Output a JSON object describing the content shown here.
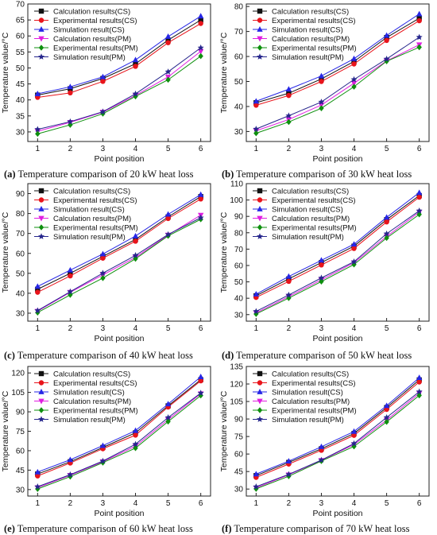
{
  "figure": {
    "legend_labels": [
      "Calculation results(CS)",
      "Experimental results(CS)",
      "Simulation result(CS)",
      "Calculation results(PM)",
      "Experimental results(PM)",
      "Simulation result(PM)"
    ],
    "series_style": [
      {
        "color": "#111111",
        "marker": "square"
      },
      {
        "color": "#e8141b",
        "marker": "circle"
      },
      {
        "color": "#2626e6",
        "marker": "triangle"
      },
      {
        "color": "#e01ee0",
        "marker": "triangle-down"
      },
      {
        "color": "#0e8f0e",
        "marker": "diamond"
      },
      {
        "color": "#26268c",
        "marker": "star"
      }
    ]
  },
  "chart_data": [
    {
      "type": "line",
      "caption": {
        "letter": "(a)",
        "text": " Temperature comparison of 20 kW heat loss"
      },
      "xlabel": "Point position",
      "ylabel": "Temperature value/°C",
      "x": [
        1,
        2,
        3,
        4,
        5,
        6
      ],
      "xticks": [
        "1",
        "2",
        "3",
        "4",
        "5",
        "6"
      ],
      "ylim": [
        27,
        70
      ],
      "yticks": [
        30,
        35,
        40,
        45,
        50,
        55,
        60,
        65,
        70
      ],
      "legend": "top-left",
      "series": [
        {
          "name": "Calculation results(CS)",
          "values": [
            41.5,
            43.5,
            46.7,
            51.3,
            58.7,
            65.0
          ]
        },
        {
          "name": "Experimental results(CS)",
          "values": [
            40.8,
            42.2,
            45.8,
            50.5,
            57.9,
            63.9
          ]
        },
        {
          "name": "Simulation result(CS)",
          "values": [
            41.9,
            44.1,
            47.2,
            52.5,
            59.8,
            66.2
          ]
        },
        {
          "name": "Calculation results(PM)",
          "values": [
            30.2,
            33.0,
            36.2,
            41.4,
            47.2,
            55.2
          ]
        },
        {
          "name": "Experimental results(PM)",
          "values": [
            29.4,
            32.2,
            35.7,
            41.1,
            46.3,
            53.7
          ]
        },
        {
          "name": "Simulation result(PM)",
          "values": [
            30.8,
            33.2,
            36.3,
            41.9,
            48.8,
            56.3
          ]
        }
      ]
    },
    {
      "type": "line",
      "caption": {
        "letter": "(b)",
        "text": " Temperature comparison of 30 kW heat loss"
      },
      "xlabel": "Point position",
      "ylabel": "Temperature value/°C",
      "x": [
        1,
        2,
        3,
        4,
        5,
        6
      ],
      "xticks": [
        "1",
        "2",
        "3",
        "4",
        "5",
        "6"
      ],
      "ylim": [
        26,
        81
      ],
      "yticks": [
        30,
        40,
        50,
        60,
        70,
        80
      ],
      "legend": "top-left",
      "series": [
        {
          "name": "Calculation results(CS)",
          "values": [
            41.5,
            45.3,
            51.0,
            58.0,
            67.6,
            75.3
          ]
        },
        {
          "name": "Experimental results(CS)",
          "values": [
            40.5,
            44.4,
            50.0,
            57.0,
            66.4,
            74.3
          ]
        },
        {
          "name": "Simulation result(CS)",
          "values": [
            42.1,
            46.9,
            52.2,
            59.1,
            68.4,
            77.0
          ]
        },
        {
          "name": "Calculation results(PM)",
          "values": [
            30.3,
            34.8,
            40.6,
            49.3,
            58.2,
            64.7
          ]
        },
        {
          "name": "Experimental results(PM)",
          "values": [
            29.3,
            33.8,
            39.3,
            47.9,
            58.1,
            63.7
          ]
        },
        {
          "name": "Simulation result(PM)",
          "values": [
            31.0,
            36.3,
            41.8,
            50.8,
            59.0,
            67.7
          ]
        }
      ]
    },
    {
      "type": "line",
      "caption": {
        "letter": "(c)",
        "text": " Temperature comparison of 40 kW heat loss"
      },
      "xlabel": "Point position",
      "ylabel": "Temperature value/°C",
      "x": [
        1,
        2,
        3,
        4,
        5,
        6
      ],
      "xticks": [
        "1",
        "2",
        "3",
        "4",
        "5",
        "6"
      ],
      "ylim": [
        26,
        95
      ],
      "yticks": [
        30,
        40,
        50,
        60,
        70,
        80,
        90
      ],
      "legend": "top-left",
      "series": [
        {
          "name": "Calculation results(CS)",
          "values": [
            42.0,
            50.0,
            58.5,
            67.0,
            78.3,
            88.5
          ]
        },
        {
          "name": "Experimental results(CS)",
          "values": [
            40.5,
            48.7,
            57.6,
            66.1,
            77.5,
            87.3
          ]
        },
        {
          "name": "Simulation result(CS)",
          "values": [
            43.4,
            51.6,
            59.7,
            68.7,
            79.6,
            89.5
          ]
        },
        {
          "name": "Calculation results(PM)",
          "values": [
            31.0,
            40.5,
            49.2,
            58.0,
            69.2,
            79.2
          ]
        },
        {
          "name": "Experimental results(PM)",
          "values": [
            30.3,
            39.2,
            47.6,
            57.3,
            68.8,
            77.1
          ]
        },
        {
          "name": "Simulation result(PM)",
          "values": [
            31.3,
            40.8,
            50.1,
            59.0,
            69.5,
            77.9
          ]
        }
      ]
    },
    {
      "type": "line",
      "caption": {
        "letter": "(d)",
        "text": " Temperature comparison of 50 kW heat loss"
      },
      "xlabel": "Point position",
      "ylabel": "Temperature value/°C",
      "x": [
        1,
        2,
        3,
        4,
        5,
        6
      ],
      "xticks": [
        "1",
        "2",
        "3",
        "4",
        "5",
        "6"
      ],
      "ylim": [
        26,
        110
      ],
      "yticks": [
        30,
        40,
        50,
        60,
        70,
        80,
        90,
        100,
        110
      ],
      "legend": "top-left",
      "series": [
        {
          "name": "Calculation results(CS)",
          "values": [
            41.5,
            51.8,
            61.8,
            71.8,
            88.0,
            102.7
          ]
        },
        {
          "name": "Experimental results(CS)",
          "values": [
            40.5,
            50.3,
            60.3,
            70.4,
            86.6,
            101.7
          ]
        },
        {
          "name": "Simulation result(CS)",
          "values": [
            42.5,
            53.3,
            63.2,
            73.0,
            89.4,
            104.5
          ]
        },
        {
          "name": "Calculation results(PM)",
          "values": [
            31.0,
            41.0,
            51.2,
            61.7,
            77.7,
            92.6
          ]
        },
        {
          "name": "Experimental results(PM)",
          "values": [
            30.4,
            40.1,
            50.2,
            60.6,
            76.8,
            91.2
          ]
        },
        {
          "name": "Simulation result(PM)",
          "values": [
            32.0,
            42.0,
            52.4,
            62.3,
            79.4,
            93.4
          ]
        }
      ]
    },
    {
      "type": "line",
      "caption": {
        "letter": "(e)",
        "text": " Temperature comparison of 60 kW heat loss"
      },
      "xlabel": "Point position",
      "ylabel": "Temperature value/°C",
      "x": [
        1,
        2,
        3,
        4,
        5,
        6
      ],
      "xticks": [
        "1",
        "2",
        "3",
        "4",
        "5",
        "6"
      ],
      "ylim": [
        25,
        125
      ],
      "yticks": [
        30,
        45,
        60,
        75,
        90,
        105,
        120
      ],
      "legend": "top-left",
      "series": [
        {
          "name": "Calculation results(CS)",
          "values": [
            42.0,
            51.5,
            62.5,
            73.8,
            94.6,
            114.8
          ]
        },
        {
          "name": "Experimental results(CS)",
          "values": [
            40.5,
            50.5,
            61.5,
            72.0,
            93.7,
            113.9
          ]
        },
        {
          "name": "Simulation result(CS)",
          "values": [
            43.5,
            53.0,
            63.9,
            75.5,
            96.0,
            117.0
          ]
        },
        {
          "name": "Calculation results(PM)",
          "values": [
            31.5,
            41.0,
            51.5,
            63.5,
            84.0,
            104.0
          ]
        },
        {
          "name": "Experimental results(PM)",
          "values": [
            30.5,
            40.0,
            50.8,
            62.0,
            82.5,
            102.6
          ]
        },
        {
          "name": "Simulation result(PM)",
          "values": [
            32.2,
            41.5,
            52.0,
            65.0,
            85.6,
            104.5
          ]
        }
      ]
    },
    {
      "type": "line",
      "caption": {
        "letter": "(f)",
        "text": " Temperature comparison of 70 kW heat loss"
      },
      "xlabel": "Point position",
      "ylabel": "Temperature value/°C",
      "x": [
        1,
        2,
        3,
        4,
        5,
        6
      ],
      "xticks": [
        "1",
        "2",
        "3",
        "4",
        "5",
        "6"
      ],
      "ylim": [
        24,
        135
      ],
      "yticks": [
        30,
        45,
        60,
        75,
        90,
        105,
        120,
        135
      ],
      "legend": "top-left",
      "series": [
        {
          "name": "Calculation results(CS)",
          "values": [
            41.5,
            52.8,
            64.5,
            77.6,
            99.8,
            123.5
          ]
        },
        {
          "name": "Experimental results(CS)",
          "values": [
            40.0,
            51.4,
            63.2,
            76.0,
            98.2,
            121.7
          ]
        },
        {
          "name": "Simulation result(CS)",
          "values": [
            42.8,
            53.9,
            66.2,
            79.3,
            101.4,
            125.4
          ]
        },
        {
          "name": "Calculation results(PM)",
          "values": [
            31.0,
            42.2,
            54.5,
            68.1,
            89.0,
            112.0
          ]
        },
        {
          "name": "Experimental results(PM)",
          "values": [
            30.2,
            41.0,
            54.0,
            66.5,
            87.5,
            110.2
          ]
        },
        {
          "name": "Simulation result(PM)",
          "values": [
            32.0,
            42.6,
            54.8,
            69.0,
            91.3,
            113.4
          ]
        }
      ]
    }
  ]
}
